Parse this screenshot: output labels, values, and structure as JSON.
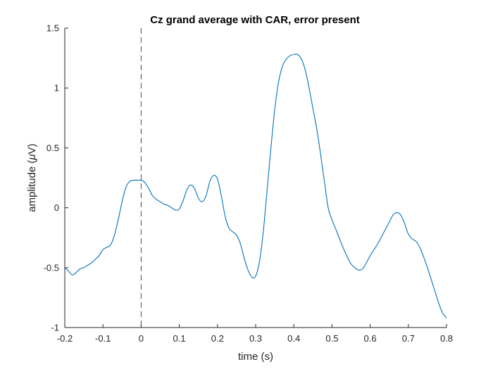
{
  "chart_data": {
    "type": "line",
    "title": "Cz grand average with CAR, error present",
    "xlabel": "time (s)",
    "ylabel": "amplitude (",
    "ylabel_symbol": "μ",
    "ylabel_unit": "V)",
    "xlim": [
      -0.2,
      0.8
    ],
    "ylim": [
      -1,
      1.5
    ],
    "xticks": [
      -0.2,
      -0.1,
      0,
      0.1,
      0.2,
      0.3,
      0.4,
      0.5,
      0.6,
      0.7,
      0.8
    ],
    "xtick_labels": [
      "-0.2",
      "-0.1",
      "0",
      "0.1",
      "0.2",
      "0.3",
      "0.4",
      "0.5",
      "0.6",
      "0.7",
      "0.8"
    ],
    "yticks": [
      -1,
      -0.5,
      0,
      0.5,
      1,
      1.5
    ],
    "ytick_labels": [
      "-1",
      "-0.5",
      "0",
      "0.5",
      "1",
      "1.5"
    ],
    "grid": false,
    "reference_line_x": 0,
    "series": [
      {
        "color": "#0072BD",
        "x": [
          -0.2,
          -0.19,
          -0.18,
          -0.17,
          -0.16,
          -0.15,
          -0.14,
          -0.13,
          -0.12,
          -0.11,
          -0.1,
          -0.09,
          -0.08,
          -0.07,
          -0.06,
          -0.05,
          -0.04,
          -0.03,
          -0.02,
          -0.01,
          0,
          0.01,
          0.02,
          0.03,
          0.04,
          0.05,
          0.06,
          0.07,
          0.08,
          0.09,
          0.1,
          0.11,
          0.12,
          0.13,
          0.14,
          0.15,
          0.16,
          0.17,
          0.18,
          0.19,
          0.2,
          0.21,
          0.22,
          0.23,
          0.24,
          0.25,
          0.26,
          0.27,
          0.28,
          0.29,
          0.3,
          0.31,
          0.32,
          0.33,
          0.34,
          0.35,
          0.36,
          0.37,
          0.38,
          0.39,
          0.4,
          0.41,
          0.42,
          0.43,
          0.44,
          0.45,
          0.46,
          0.47,
          0.48,
          0.49,
          0.5,
          0.51,
          0.52,
          0.53,
          0.54,
          0.55,
          0.56,
          0.57,
          0.58,
          0.59,
          0.6,
          0.61,
          0.62,
          0.63,
          0.64,
          0.65,
          0.66,
          0.67,
          0.68,
          0.69,
          0.7,
          0.71,
          0.72,
          0.73,
          0.74,
          0.75,
          0.76,
          0.77,
          0.78,
          0.79,
          0.8
        ],
        "y": [
          -0.5,
          -0.53,
          -0.56,
          -0.54,
          -0.51,
          -0.5,
          -0.48,
          -0.46,
          -0.43,
          -0.4,
          -0.35,
          -0.33,
          -0.31,
          -0.23,
          -0.1,
          0.05,
          0.17,
          0.22,
          0.23,
          0.23,
          0.23,
          0.21,
          0.16,
          0.1,
          0.07,
          0.05,
          0.03,
          0.02,
          0.0,
          -0.02,
          -0.01,
          0.06,
          0.15,
          0.19,
          0.16,
          0.08,
          0.05,
          0.1,
          0.22,
          0.27,
          0.24,
          0.1,
          -0.07,
          -0.17,
          -0.2,
          -0.23,
          -0.3,
          -0.42,
          -0.52,
          -0.58,
          -0.57,
          -0.45,
          -0.2,
          0.15,
          0.5,
          0.82,
          1.05,
          1.18,
          1.24,
          1.27,
          1.28,
          1.28,
          1.24,
          1.15,
          1.0,
          0.83,
          0.66,
          0.45,
          0.22,
          0.0,
          -0.1,
          -0.18,
          -0.26,
          -0.34,
          -0.41,
          -0.47,
          -0.5,
          -0.52,
          -0.51,
          -0.46,
          -0.4,
          -0.35,
          -0.3,
          -0.24,
          -0.18,
          -0.12,
          -0.06,
          -0.04,
          -0.06,
          -0.13,
          -0.22,
          -0.26,
          -0.28,
          -0.33,
          -0.41,
          -0.5,
          -0.6,
          -0.7,
          -0.8,
          -0.88,
          -0.92
        ]
      }
    ]
  }
}
